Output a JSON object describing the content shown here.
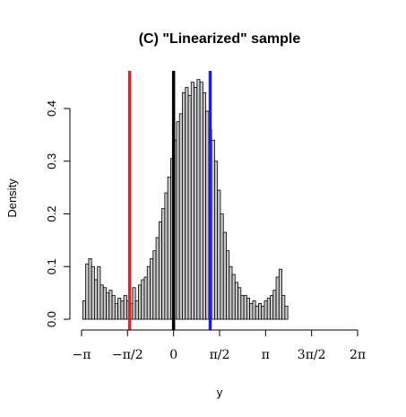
{
  "chart_data": {
    "type": "bar",
    "title": "(C) \"Linearized\" sample",
    "xlabel": "y",
    "ylabel": "Density",
    "xlim": [
      -3.14159,
      6.28319
    ],
    "ylim": [
      0,
      0.46
    ],
    "x_ticks": [
      {
        "value": -3.14159,
        "label": "−π"
      },
      {
        "value": -1.5708,
        "label": "−π/2"
      },
      {
        "value": 0,
        "label": "0"
      },
      {
        "value": 1.5708,
        "label": "π/2"
      },
      {
        "value": 3.14159,
        "label": "π"
      },
      {
        "value": 4.71239,
        "label": "3π/2"
      },
      {
        "value": 6.28319,
        "label": "2π"
      }
    ],
    "y_ticks": [
      {
        "value": 0.0,
        "label": "0.0"
      },
      {
        "value": 0.1,
        "label": "0.1"
      },
      {
        "value": 0.2,
        "label": "0.2"
      },
      {
        "value": 0.3,
        "label": "0.3"
      },
      {
        "value": 0.4,
        "label": "0.4"
      }
    ],
    "bin_start": -3.1,
    "bin_width": 0.1,
    "densities": [
      0.035,
      0.105,
      0.115,
      0.1,
      0.075,
      0.1,
      0.065,
      0.06,
      0.05,
      0.055,
      0.045,
      0.03,
      0.04,
      0.035,
      0.045,
      0.035,
      0.03,
      0.06,
      0.035,
      0.065,
      0.075,
      0.08,
      0.1,
      0.115,
      0.13,
      0.155,
      0.185,
      0.21,
      0.24,
      0.27,
      0.305,
      0.34,
      0.375,
      0.39,
      0.43,
      0.44,
      0.425,
      0.45,
      0.44,
      0.455,
      0.45,
      0.43,
      0.395,
      0.36,
      0.34,
      0.3,
      0.245,
      0.2,
      0.165,
      0.13,
      0.1,
      0.085,
      0.07,
      0.06,
      0.045,
      0.045,
      0.04,
      0.03,
      0.035,
      0.025,
      0.03,
      0.025,
      0.035,
      0.04,
      0.045,
      0.055,
      0.08,
      0.095,
      0.045,
      0.025
    ],
    "vertical_lines": [
      {
        "x": -1.5,
        "color": "#ee1c1c"
      },
      {
        "x": 0.0,
        "color": "#000000"
      },
      {
        "x": 1.25,
        "color": "#1c1cee"
      }
    ],
    "bar_fill": "#c8c8c8",
    "bar_stroke": "#000000"
  }
}
